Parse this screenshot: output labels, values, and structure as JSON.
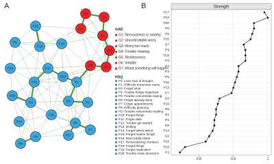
{
  "panel_labels": [
    "A",
    "B"
  ],
  "network": {
    "groups": [
      {
        "name": "GAD",
        "color": "#e8262a",
        "items": [
          "G1: Nervousness or anxiety",
          "G2: Uncontrollable worry",
          "G3: Worry too much",
          "G4: Trouble relaxing",
          "G5: Restlessness",
          "G6: Irritable",
          "G7: Afraid something will happen"
        ]
      },
      {
        "name": "PDQ",
        "color": "#3aa6dc",
        "items": [
          "P1: Lose train of thought",
          "P2: Difficulty remember name",
          "P3: Forget what",
          "P4: Trouble things organized",
          "P5: Trouble concentrate saying",
          "P6: Forget already done",
          "P7: Forget appointments",
          "P8: Difficulty planning",
          "P9: Trouble concentrate reading",
          "P10: Forget things",
          "P11: Forget date",
          "P12: Trouble get started",
          "P13: Drifting",
          "P14: Forget talked about",
          "P15: Forget routine things",
          "P16: Mind totally blank",
          "P17: Remembering numbers",
          "P18: Forget things",
          "P19: Forget medication",
          "P20: Trouble make decisions"
        ]
      }
    ],
    "nodes": [
      [
        "G1",
        "G2",
        "G3",
        "G4",
        "G5",
        "G6",
        "G7"
      ],
      [
        "P1",
        "P2",
        "P3",
        "P4",
        "P5",
        "P6",
        "P7",
        "P8",
        "P9",
        "P10",
        "P11",
        "P12",
        "P13",
        "P14",
        "P15",
        "P16",
        "P17",
        "P18",
        "P19",
        "P20"
      ]
    ]
  },
  "chart_data": {
    "type": "line",
    "title": "Strength",
    "categories": [
      "P17",
      "P12",
      "P20",
      "P8",
      "P6",
      "P10",
      "G7",
      "P9",
      "P18",
      "P4",
      "G4",
      "P3",
      "P5",
      "P11",
      "P13",
      "P7",
      "G3",
      "P16",
      "G6",
      "G1",
      "P1",
      "G5",
      "P14",
      "G2",
      "P15",
      "P19",
      "P2"
    ],
    "values": [
      0.99,
      1.0,
      0.96,
      0.96,
      0.955,
      0.95,
      0.93,
      0.935,
      0.935,
      0.935,
      0.915,
      0.915,
      0.91,
      0.905,
      0.9,
      0.895,
      0.86,
      0.855,
      0.85,
      0.85,
      0.845,
      0.845,
      0.84,
      0.83,
      0.82,
      0.76,
      0.745
    ],
    "color": "#000000",
    "xlim": [
      0.72,
      1.01
    ],
    "xticks": [
      0.8,
      0.9,
      1.0
    ],
    "grid": true
  }
}
